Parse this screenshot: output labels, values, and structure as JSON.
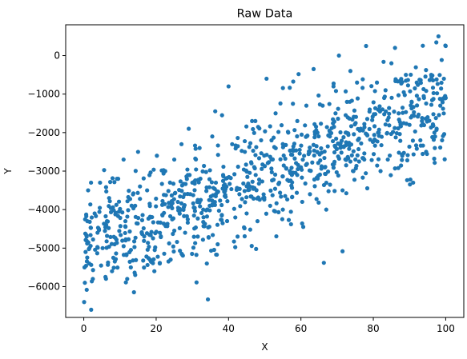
{
  "chart_data": {
    "type": "scatter",
    "title": "Raw Data",
    "xlabel": "X",
    "ylabel": "Y",
    "xlim": [
      -5,
      105
    ],
    "ylim": [
      -6800,
      800
    ],
    "x_ticks": [
      0,
      20,
      40,
      60,
      80,
      100
    ],
    "y_ticks": [
      -6000,
      -5000,
      -4000,
      -3000,
      -2000,
      -1000,
      0
    ],
    "grid": false,
    "legend": "none",
    "point_color": "#1f77b4",
    "n_points": 1000,
    "series": [
      {
        "trend_start": [
          0,
          -4900
        ],
        "trend_end": [
          100,
          -1200
        ],
        "noise_sd": 700,
        "points": [
          [
            0.1,
            -6400
          ],
          [
            0.3,
            -5900
          ],
          [
            0.2,
            -5500
          ],
          [
            0.5,
            -5100
          ],
          [
            0.8,
            -4700
          ],
          [
            1.0,
            -4300
          ],
          [
            1.2,
            -3500
          ],
          [
            1.5,
            -5400
          ],
          [
            2.0,
            -3300
          ],
          [
            2.5,
            -5800
          ],
          [
            3.0,
            -4100
          ],
          [
            3.8,
            -4600
          ],
          [
            4.5,
            -3300
          ],
          [
            5.2,
            -5000
          ],
          [
            6.2,
            -4400
          ],
          [
            7.0,
            -3700
          ],
          [
            7.8,
            -5600
          ],
          [
            8.5,
            -4900
          ],
          [
            9.5,
            -3200
          ],
          [
            11.0,
            -2700
          ],
          [
            11.5,
            -4300
          ],
          [
            12.0,
            -5800
          ],
          [
            13.0,
            -5500
          ],
          [
            14.2,
            -3900
          ],
          [
            15.0,
            -2500
          ],
          [
            16.0,
            -4600
          ],
          [
            17.5,
            -3500
          ],
          [
            18.5,
            -4200
          ],
          [
            19.5,
            -5600
          ],
          [
            20.2,
            -2600
          ],
          [
            21.0,
            -5400
          ],
          [
            22.5,
            -3000
          ],
          [
            24.0,
            -5300
          ],
          [
            25.0,
            -2700
          ],
          [
            26.0,
            -3800
          ],
          [
            27.0,
            -2300
          ],
          [
            28.0,
            -4600
          ],
          [
            29.0,
            -1900
          ],
          [
            30.0,
            -3300
          ],
          [
            31.5,
            -4700
          ],
          [
            32.0,
            -2400
          ],
          [
            33.0,
            -4000
          ],
          [
            34.0,
            -5400
          ],
          [
            35.5,
            -2100
          ],
          [
            36.5,
            -3600
          ],
          [
            37.0,
            -4900
          ],
          [
            38.5,
            -3100
          ],
          [
            40.0,
            -800
          ],
          [
            41.0,
            -2300
          ],
          [
            42.5,
            -4700
          ],
          [
            43.0,
            -3600
          ],
          [
            44.5,
            -2500
          ],
          [
            45.0,
            -4100
          ],
          [
            46.5,
            -1700
          ],
          [
            47.5,
            -3100
          ],
          [
            48.0,
            -4300
          ],
          [
            49.0,
            -2200
          ],
          [
            50.5,
            -600
          ],
          [
            51.5,
            -3900
          ],
          [
            52.0,
            -2700
          ],
          [
            53.0,
            -1500
          ],
          [
            54.0,
            -3300
          ],
          [
            55.0,
            -4000
          ],
          [
            56.5,
            -2000
          ],
          [
            57.5,
            -3100
          ],
          [
            59.0,
            -1700
          ],
          [
            60.0,
            -2900
          ],
          [
            61.5,
            -1300
          ],
          [
            62.5,
            -3600
          ],
          [
            63.5,
            -350
          ],
          [
            64.5,
            -2500
          ],
          [
            66.0,
            -1300
          ],
          [
            67.0,
            -4000
          ],
          [
            68.0,
            -2100
          ],
          [
            69.0,
            -800
          ],
          [
            70.5,
            0
          ],
          [
            71.5,
            -3500
          ],
          [
            72.5,
            -2000
          ],
          [
            73.5,
            -1200
          ],
          [
            74.5,
            -3000
          ],
          [
            75.5,
            -700
          ],
          [
            76.5,
            -1900
          ],
          [
            77.5,
            -2700
          ],
          [
            78.0,
            250
          ],
          [
            79.0,
            -1400
          ],
          [
            80.5,
            -2200
          ],
          [
            81.0,
            -700
          ],
          [
            82.0,
            -3000
          ],
          [
            83.0,
            -1100
          ],
          [
            84.0,
            -2700
          ],
          [
            85.0,
            -200
          ],
          [
            86.0,
            200
          ],
          [
            87.0,
            -1500
          ],
          [
            88.0,
            -2600
          ],
          [
            89.0,
            -500
          ],
          [
            90.0,
            -1800
          ],
          [
            91.0,
            -3300
          ],
          [
            92.0,
            -700
          ],
          [
            93.0,
            -2200
          ],
          [
            94.0,
            -1100
          ],
          [
            95.0,
            -1600
          ],
          [
            96.0,
            -500
          ],
          [
            97.0,
            -2400
          ],
          [
            97.5,
            -1900
          ],
          [
            98.0,
            500
          ],
          [
            98.5,
            -1300
          ],
          [
            99.0,
            -2200
          ],
          [
            99.5,
            -600
          ],
          [
            100.0,
            250
          ],
          [
            100.0,
            -1100
          ]
        ]
      }
    ]
  }
}
